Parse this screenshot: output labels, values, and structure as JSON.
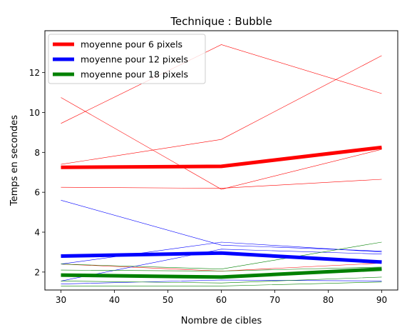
{
  "chart_data": {
    "type": "line",
    "title": "Technique : Bubble",
    "xlabel": "Nombre de cibles",
    "ylabel": "Temps en secondes",
    "x": [
      30,
      60,
      90
    ],
    "xlim": [
      27,
      93
    ],
    "ylim": [
      1.1,
      14.1
    ],
    "xticks": [
      30,
      40,
      50,
      60,
      70,
      80,
      90
    ],
    "yticks": [
      2,
      4,
      6,
      8,
      10,
      12
    ],
    "grid": false,
    "legend_position": "top-left",
    "series": [
      {
        "name": "moyenne pour 6 pixels",
        "color": "#ff0000",
        "values": [
          7.25,
          7.3,
          8.25
        ]
      },
      {
        "name": "moyenne pour 12 pixels",
        "color": "#0000ff",
        "values": [
          2.8,
          2.95,
          2.5
        ]
      },
      {
        "name": "moyenne pour 18 pixels",
        "color": "#008000",
        "values": [
          1.85,
          1.75,
          2.15
        ]
      }
    ],
    "individual_series": [
      {
        "color": "#ff0000",
        "values": [
          9.45,
          13.4,
          10.95
        ]
      },
      {
        "color": "#ff0000",
        "values": [
          10.75,
          6.15,
          8.15
        ]
      },
      {
        "color": "#ff0000",
        "values": [
          7.4,
          8.65,
          12.85
        ]
      },
      {
        "color": "#ff0000",
        "values": [
          6.25,
          6.2,
          6.65
        ]
      },
      {
        "color": "#ff0000",
        "values": [
          2.4,
          2.05,
          2.45
        ]
      },
      {
        "color": "#0000ff",
        "values": [
          5.6,
          3.35,
          3.05
        ]
      },
      {
        "color": "#0000ff",
        "values": [
          2.4,
          3.5,
          3.0
        ]
      },
      {
        "color": "#0000ff",
        "values": [
          1.55,
          3.15,
          2.9
        ]
      },
      {
        "color": "#0000ff",
        "values": [
          1.4,
          1.6,
          1.55
        ]
      },
      {
        "color": "#008000",
        "values": [
          2.4,
          2.15,
          3.5
        ]
      },
      {
        "color": "#008000",
        "values": [
          2.1,
          2.05,
          2.25
        ]
      },
      {
        "color": "#008000",
        "values": [
          1.55,
          1.45,
          1.75
        ]
      },
      {
        "color": "#008000",
        "values": [
          1.3,
          1.3,
          1.5
        ]
      }
    ]
  }
}
